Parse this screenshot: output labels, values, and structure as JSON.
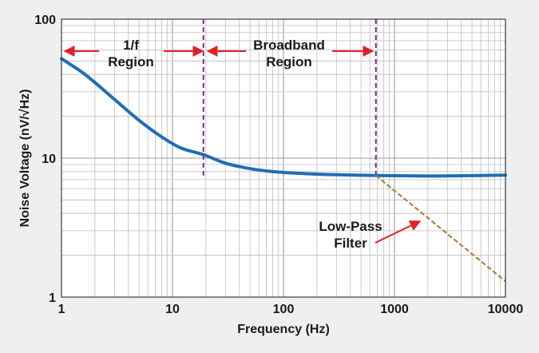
{
  "chart_data": {
    "type": "line",
    "title": "",
    "xlabel": "Frequency (Hz)",
    "ylabel": "Noise Voltage (nV/√Hz)",
    "x_scale": "log",
    "y_scale": "log",
    "xlim": [
      1,
      10000
    ],
    "ylim": [
      1,
      100
    ],
    "grid": true,
    "x_ticks": [
      {
        "value": 1,
        "label": "1"
      },
      {
        "value": 10,
        "label": "10"
      },
      {
        "value": 100,
        "label": "100"
      },
      {
        "value": 1000,
        "label": "1000"
      },
      {
        "value": 10000,
        "label": "10000"
      }
    ],
    "y_ticks": [
      {
        "value": 1,
        "label": "1"
      },
      {
        "value": 10,
        "label": "10"
      },
      {
        "value": 100,
        "label": "100"
      }
    ],
    "series": [
      {
        "name": "",
        "color": "#1f6eb5",
        "style": "solid",
        "x": [
          1,
          1.5,
          2,
          3,
          5,
          8,
          12,
          19,
          30,
          50,
          80,
          150,
          300,
          700,
          1500,
          3000,
          10000
        ],
        "y": [
          52,
          42,
          35,
          26.5,
          18.7,
          14.2,
          11.8,
          10.6,
          9.2,
          8.4,
          8.0,
          7.75,
          7.6,
          7.5,
          7.45,
          7.45,
          7.55
        ]
      },
      {
        "name": "",
        "color": "#b0742e",
        "style": "dashed",
        "x": [
          680,
          10000
        ],
        "y": [
          7.5,
          1.3
        ]
      }
    ],
    "region_markers": [
      {
        "x": 19,
        "color": "#7a2c8a",
        "style": "dashed"
      },
      {
        "x": 680,
        "color": "#7a2c8a",
        "style": "dashed"
      }
    ],
    "annotations": [
      {
        "id": "region-1f",
        "lines": [
          "1/f",
          "Region"
        ]
      },
      {
        "id": "region-broadband",
        "lines": [
          "Broadband",
          "Region"
        ]
      },
      {
        "id": "lowpass-filter",
        "lines": [
          "Low-Pass",
          "Filter"
        ]
      }
    ],
    "accent_arrow_color": "#e0202a"
  }
}
